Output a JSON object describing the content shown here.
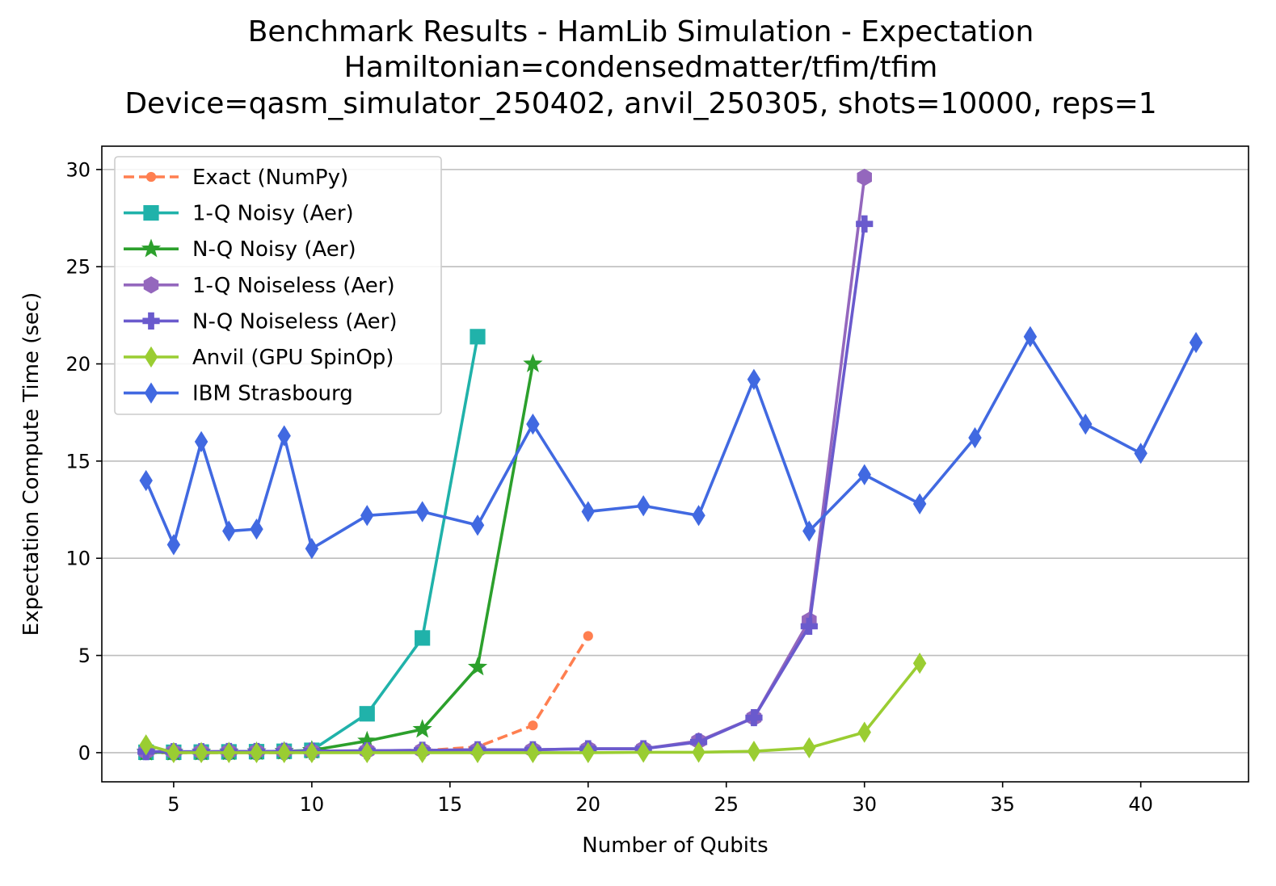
{
  "chart_data": {
    "type": "line",
    "title_lines": [
      "Benchmark Results - HamLib Simulation - Expectation",
      "Hamiltonian=condensedmatter/tfim/tfim",
      "Device=qasm_simulator_250402, anvil_250305, shots=10000, reps=1"
    ],
    "xlabel": "Number of Qubits",
    "ylabel": "Expectation Compute Time (sec)",
    "xlim": [
      2.4,
      43.9
    ],
    "ylim": [
      -1.5,
      31.2
    ],
    "xticks": [
      5,
      10,
      15,
      20,
      25,
      30,
      35,
      40
    ],
    "yticks": [
      0,
      5,
      10,
      15,
      20,
      25,
      30
    ],
    "grid": "y",
    "legend_position": "upper-left",
    "series": [
      {
        "name": "Exact (NumPy)",
        "color": "#ff7f50",
        "marker": "circle",
        "dashed": true,
        "x": [
          4,
          5,
          6,
          7,
          8,
          9,
          10,
          12,
          14,
          16,
          18,
          20
        ],
        "y": [
          0.0,
          0.0,
          0.0,
          0.0,
          0.0,
          0.0,
          0.01,
          0.03,
          0.1,
          0.3,
          1.4,
          6.0
        ]
      },
      {
        "name": "1-Q Noisy (Aer)",
        "color": "#20b2aa",
        "marker": "square",
        "dashed": false,
        "x": [
          4,
          5,
          6,
          7,
          8,
          9,
          10,
          12,
          14,
          16
        ],
        "y": [
          0.02,
          0.02,
          0.03,
          0.04,
          0.05,
          0.07,
          0.12,
          2.0,
          5.9,
          21.4
        ]
      },
      {
        "name": "N-Q Noisy (Aer)",
        "color": "#2ca02c",
        "marker": "star",
        "dashed": false,
        "x": [
          4,
          5,
          6,
          7,
          8,
          9,
          10,
          12,
          14,
          16,
          18
        ],
        "y": [
          0.02,
          0.02,
          0.03,
          0.04,
          0.05,
          0.07,
          0.12,
          0.6,
          1.2,
          4.4,
          20.0
        ]
      },
      {
        "name": "1-Q Noiseless (Aer)",
        "color": "#9467bd",
        "marker": "hexagon",
        "dashed": false,
        "x": [
          4,
          5,
          6,
          7,
          8,
          9,
          10,
          12,
          14,
          16,
          18,
          20,
          22,
          24,
          26,
          28,
          30
        ],
        "y": [
          0.05,
          0.05,
          0.05,
          0.06,
          0.06,
          0.07,
          0.08,
          0.1,
          0.12,
          0.15,
          0.15,
          0.2,
          0.2,
          0.6,
          1.8,
          6.8,
          29.6
        ]
      },
      {
        "name": "N-Q Noiseless (Aer)",
        "color": "#6a5acd",
        "marker": "plus",
        "dashed": false,
        "x": [
          4,
          5,
          6,
          7,
          8,
          9,
          10,
          12,
          14,
          16,
          18,
          20,
          22,
          24,
          26,
          28,
          30
        ],
        "y": [
          0.05,
          0.05,
          0.05,
          0.06,
          0.06,
          0.07,
          0.08,
          0.1,
          0.12,
          0.15,
          0.15,
          0.2,
          0.2,
          0.55,
          1.8,
          6.5,
          27.2
        ]
      },
      {
        "name": "Anvil (GPU SpinOp)",
        "color": "#9acd32",
        "marker": "thin_diamond",
        "dashed": false,
        "x": [
          4,
          5,
          6,
          7,
          8,
          9,
          10,
          12,
          14,
          16,
          18,
          20,
          22,
          24,
          26,
          28,
          30,
          32
        ],
        "y": [
          0.4,
          0.0,
          0.0,
          0.0,
          0.0,
          0.0,
          0.0,
          0.0,
          0.0,
          0.0,
          0.0,
          0.0,
          0.02,
          0.02,
          0.07,
          0.25,
          1.05,
          4.6
        ]
      },
      {
        "name": "IBM Strasbourg",
        "color": "#4169e1",
        "marker": "thin_diamond",
        "dashed": false,
        "x": [
          4,
          5,
          6,
          7,
          8,
          9,
          10,
          12,
          14,
          16,
          18,
          20,
          22,
          24,
          26,
          28,
          30,
          32,
          34,
          36,
          38,
          40,
          42
        ],
        "y": [
          14.0,
          10.7,
          16.0,
          11.4,
          11.5,
          16.3,
          10.5,
          12.2,
          12.4,
          11.7,
          16.9,
          12.4,
          12.7,
          12.2,
          19.2,
          11.4,
          14.3,
          12.8,
          16.2,
          21.4,
          16.9,
          15.4,
          21.1
        ]
      }
    ]
  }
}
